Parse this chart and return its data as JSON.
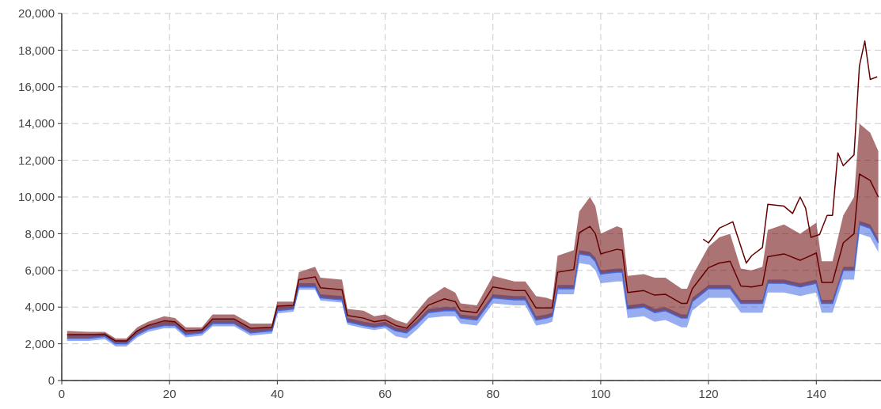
{
  "chart_data": {
    "type": "line",
    "xlim": [
      0,
      152
    ],
    "xticks": [
      0,
      20,
      40,
      60,
      80,
      100,
      120,
      140
    ],
    "ylim": [
      0,
      20000
    ],
    "yticks": [
      0,
      {
        "value": 2000,
        "label": "2,000"
      },
      {
        "value": 4000,
        "label": "4,000"
      },
      {
        "value": 6000,
        "label": "6,000"
      },
      {
        "value": 8000,
        "label": "8,000"
      },
      {
        "value": 10000,
        "label": "10,000"
      },
      {
        "value": 12000,
        "label": "12,000"
      },
      {
        "value": 14000,
        "label": "14,000"
      },
      {
        "value": 16000,
        "label": "16,000"
      },
      {
        "value": 18000,
        "label": "18,000"
      },
      {
        "value": 20000,
        "label": "20,000"
      }
    ],
    "grid": true,
    "line_style": "solid",
    "x": [
      1,
      5,
      8,
      10,
      12,
      14,
      16,
      19,
      21,
      23,
      26,
      28,
      32,
      35,
      39,
      40,
      43,
      44,
      47,
      48,
      52,
      53,
      56,
      58,
      60,
      62,
      64,
      66,
      68,
      71,
      73,
      74,
      77,
      80,
      84,
      86,
      88,
      90,
      91,
      92,
      95,
      96,
      98,
      99,
      100,
      103,
      104,
      105,
      108,
      110,
      112,
      115,
      116,
      117,
      120,
      122,
      124,
      126,
      128,
      130,
      131,
      134,
      137,
      140,
      141,
      143,
      145,
      147,
      148,
      150,
      151.5
    ],
    "series": [
      {
        "color": "#4169e1",
        "values": [
          2300,
          2300,
          2400,
          2000,
          2000,
          2500,
          2800,
          3000,
          3000,
          2500,
          2600,
          3100,
          3100,
          2600,
          2700,
          3800,
          3900,
          5100,
          5100,
          4500,
          4400,
          3200,
          3000,
          2900,
          3000,
          2700,
          2600,
          3100,
          3700,
          3800,
          3800,
          3400,
          3300,
          4500,
          4400,
          4400,
          3300,
          3400,
          3500,
          5000,
          5000,
          6900,
          6800,
          6500,
          5800,
          5900,
          5900,
          3900,
          4000,
          3700,
          3800,
          3400,
          3400,
          4300,
          5000,
          5000,
          5000,
          4200,
          4200,
          4200,
          5300,
          5300,
          5100,
          5300,
          4200,
          4200,
          6000,
          6000,
          8500,
          8300,
          7500
        ],
        "lower": [
          2150,
          2150,
          2250,
          1850,
          1850,
          2350,
          2650,
          2850,
          2850,
          2350,
          2450,
          2950,
          2950,
          2450,
          2550,
          3650,
          3750,
          4950,
          4950,
          4350,
          4250,
          3050,
          2850,
          2750,
          2850,
          2400,
          2300,
          2800,
          3400,
          3500,
          3500,
          3100,
          3000,
          4200,
          4100,
          4100,
          3000,
          3100,
          3200,
          4700,
          4700,
          6400,
          6300,
          6000,
          5300,
          5400,
          5400,
          3400,
          3500,
          3200,
          3300,
          2900,
          2900,
          3800,
          4500,
          4500,
          4500,
          3700,
          3700,
          3700,
          4800,
          4800,
          4600,
          4800,
          3700,
          3700,
          5500,
          5500,
          8000,
          7800,
          7000
        ],
        "upper": [
          2500,
          2500,
          2600,
          2200,
          2200,
          2700,
          3000,
          3200,
          3200,
          2700,
          2800,
          3300,
          3300,
          2800,
          2900,
          4000,
          4100,
          5300,
          5300,
          4700,
          4600,
          3400,
          3200,
          3100,
          3200,
          2900,
          2800,
          3300,
          3900,
          4000,
          4000,
          3600,
          3500,
          4700,
          4600,
          4600,
          3500,
          3600,
          3700,
          5200,
          5200,
          7100,
          7000,
          6700,
          6000,
          6100,
          6100,
          4100,
          4200,
          3900,
          4000,
          3600,
          3600,
          4500,
          5200,
          5200,
          5200,
          4400,
          4400,
          4400,
          5500,
          5500,
          5300,
          5500,
          4400,
          4400,
          6200,
          6200,
          8700,
          8500,
          7700
        ]
      },
      {
        "color": "#660000",
        "values": [
          2500,
          2500,
          2500,
          2150,
          2150,
          2700,
          3000,
          3250,
          3200,
          2700,
          2750,
          3350,
          3350,
          2850,
          2900,
          4050,
          4100,
          5500,
          5650,
          5050,
          4950,
          3550,
          3400,
          3200,
          3300,
          3000,
          2850,
          3450,
          4100,
          4450,
          4300,
          3800,
          3700,
          5100,
          4900,
          4900,
          3950,
          3950,
          3950,
          5900,
          6050,
          8050,
          8400,
          8000,
          6900,
          7150,
          7100,
          4800,
          4900,
          4650,
          4700,
          4200,
          4200,
          5000,
          6150,
          6400,
          6500,
          5150,
          5100,
          5200,
          6750,
          6900,
          6550,
          6950,
          5350,
          5350,
          7500,
          8000,
          11250,
          10900,
          10000
        ],
        "lower": [
          2300,
          2300,
          2400,
          2000,
          2000,
          2500,
          2800,
          3000,
          3000,
          2500,
          2600,
          3100,
          3100,
          2600,
          2700,
          3800,
          3900,
          5100,
          5100,
          4500,
          4400,
          3200,
          3000,
          2900,
          3000,
          2700,
          2600,
          3100,
          3700,
          3800,
          3800,
          3400,
          3300,
          4500,
          4400,
          4400,
          3300,
          3400,
          3500,
          5000,
          5000,
          6900,
          6800,
          6500,
          5800,
          5900,
          5900,
          3900,
          4000,
          3700,
          3800,
          3400,
          3400,
          4300,
          5000,
          5000,
          5000,
          4200,
          4200,
          4200,
          5300,
          5300,
          5100,
          5300,
          4200,
          4200,
          6000,
          6000,
          8500,
          8300,
          7500
        ],
        "upper": [
          2700,
          2650,
          2650,
          2300,
          2300,
          2900,
          3200,
          3500,
          3400,
          2900,
          2900,
          3600,
          3600,
          3100,
          3100,
          4300,
          4300,
          5900,
          6200,
          5600,
          5500,
          3900,
          3800,
          3500,
          3600,
          3300,
          3100,
          3800,
          4500,
          5100,
          4800,
          4200,
          4100,
          5700,
          5400,
          5400,
          4600,
          4500,
          4400,
          6800,
          7100,
          9200,
          10000,
          9500,
          8000,
          8400,
          8300,
          5700,
          5800,
          5600,
          5600,
          5000,
          5000,
          5700,
          7300,
          7800,
          8000,
          6100,
          6000,
          6200,
          8200,
          8500,
          8000,
          8600,
          6500,
          6500,
          9000,
          10000,
          14000,
          13500,
          12500
        ]
      },
      {
        "color": "#660000",
        "x": [
          119,
          120,
          122,
          124.5,
          127,
          128,
          130,
          131,
          134,
          135.6,
          137,
          138,
          139,
          140.6,
          142,
          143,
          144,
          145,
          147,
          148,
          149,
          150,
          151.3
        ],
        "values": [
          7700,
          7500,
          8300,
          8650,
          6400,
          6800,
          7250,
          9600,
          9500,
          9100,
          10000,
          9400,
          7800,
          7950,
          9000,
          9000,
          12400,
          11700,
          12300,
          17150,
          18500,
          16400,
          16550
        ]
      }
    ]
  }
}
